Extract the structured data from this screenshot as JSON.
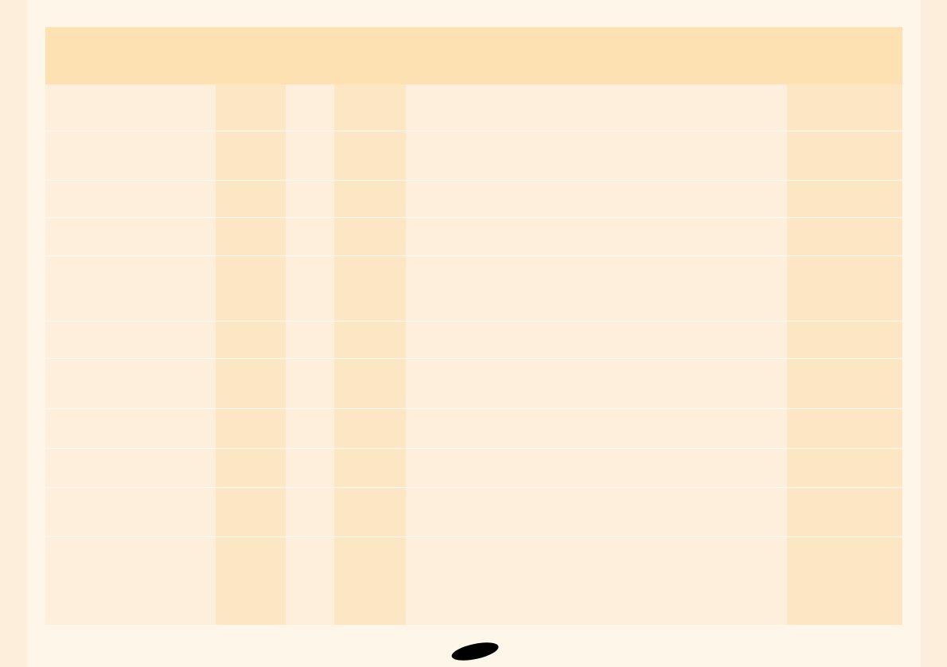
{
  "colors": {
    "background": "#fff6ea",
    "side_strip": "#fdeedb",
    "header": "#fde1b2",
    "column_light": "#fdefdb",
    "column_dark": "#fde6c4"
  },
  "table": {
    "header": "",
    "columns": [
      "",
      "",
      "",
      "",
      "",
      ""
    ],
    "rows": [
      [
        "",
        "",
        "",
        "",
        "",
        ""
      ],
      [
        "",
        "",
        "",
        "",
        "",
        ""
      ],
      [
        "",
        "",
        "",
        "",
        "",
        ""
      ],
      [
        "",
        "",
        "",
        "",
        "",
        ""
      ],
      [
        "",
        "",
        "",
        "",
        "",
        ""
      ],
      [
        "",
        "",
        "",
        "",
        "",
        ""
      ],
      [
        "",
        "",
        "",
        "",
        "",
        ""
      ],
      [
        "",
        "",
        "",
        "",
        "",
        ""
      ],
      [
        "",
        "",
        "",
        "",
        "",
        ""
      ],
      [
        "",
        "",
        "",
        "",
        "",
        ""
      ],
      [
        "",
        "",
        "",
        "",
        "",
        ""
      ]
    ]
  }
}
